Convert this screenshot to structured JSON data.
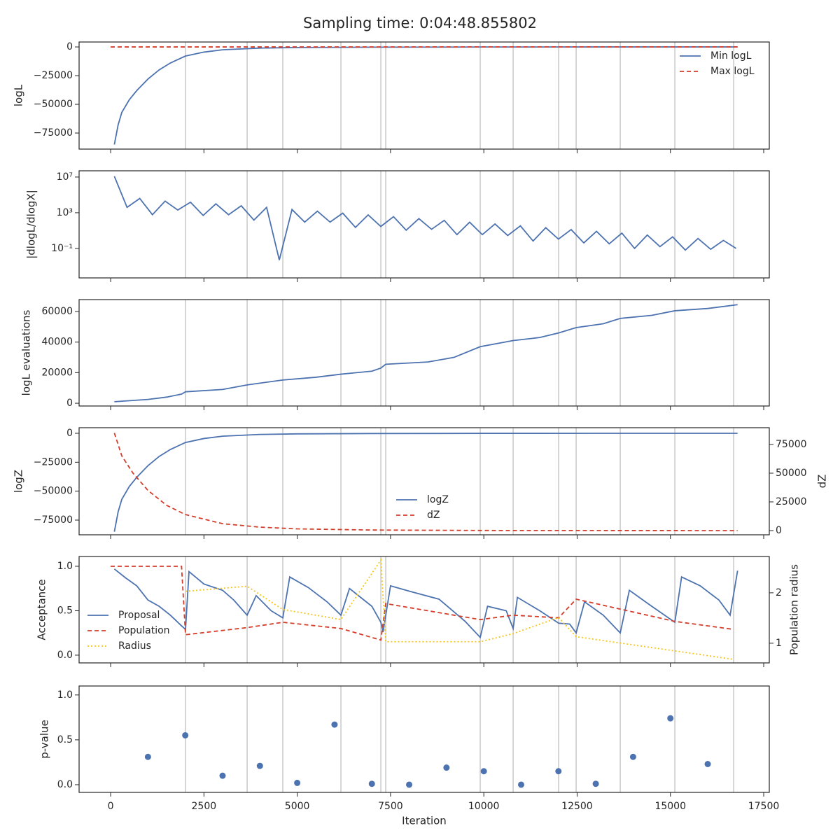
{
  "title": "Sampling time: 0:04:48.855802",
  "x_label": "Iteration",
  "chart_data": [
    {
      "type": "line",
      "y_label": "logL",
      "legend": "upper right",
      "xlim": [
        -845,
        17650
      ],
      "xticks": [
        0,
        2500,
        5000,
        7500,
        10000,
        12500,
        15000,
        17500
      ],
      "ylim": [
        -89000,
        4300
      ],
      "yticks": [
        {
          "value": 0,
          "label": "0"
        },
        {
          "value": -25000,
          "label": "−25000"
        },
        {
          "value": -50000,
          "label": "−50000"
        },
        {
          "value": -75000,
          "label": "−75000"
        }
      ],
      "vlines": [
        2007,
        3658,
        4614,
        6171,
        7241,
        7372,
        9904,
        10786,
        12005,
        12474,
        13656,
        15119,
        16695
      ],
      "series": [
        {
          "name": "Min logL",
          "color": "#4c72b0",
          "style": "solid",
          "x": [
            100,
            200,
            300,
            500,
            700,
            1000,
            1300,
            1600,
            2000,
            2500,
            3000,
            4000,
            5000,
            7000,
            10000,
            13000,
            16800
          ],
          "values": [
            -85000,
            -68000,
            -57000,
            -46000,
            -38000,
            -28000,
            -20000,
            -14000,
            -8000,
            -4500,
            -2500,
            -1000,
            -500,
            -200,
            -50,
            -10,
            0
          ]
        },
        {
          "name": "Max logL",
          "color": "#d43d2a",
          "style": "dashed",
          "x": [
            0,
            16800
          ],
          "values": [
            0,
            0
          ]
        }
      ]
    },
    {
      "type": "line",
      "y_label": "|dlogL/dlogX|",
      "yscale": "log",
      "xlim": [
        -845,
        17650
      ],
      "xticks": [
        0,
        2500,
        5000,
        7500,
        10000,
        12500,
        15000,
        17500
      ],
      "ylim": [
        5e-05,
        50000000
      ],
      "yticks": [
        {
          "value": 10000000,
          "label": "10⁷"
        },
        {
          "value": 1000,
          "label": "10³"
        },
        {
          "value": 0.1,
          "label": "10⁻¹"
        }
      ],
      "vlines": [
        2007,
        3658,
        4614,
        6171,
        7241,
        7372,
        9904,
        10786,
        12005,
        12474,
        13656,
        15119,
        16695
      ],
      "series": [
        {
          "color": "#4c72b0",
          "style": "solid",
          "x": [
            100,
            440,
            780,
            1120,
            1460,
            1800,
            2140,
            2480,
            2820,
            3160,
            3500,
            3840,
            4180,
            4520,
            4860,
            5200,
            5540,
            5880,
            6220,
            6560,
            6900,
            7240,
            7580,
            7920,
            8260,
            8600,
            8940,
            9280,
            9620,
            9960,
            10300,
            10640,
            10980,
            11320,
            11660,
            12000,
            12340,
            12680,
            13020,
            13360,
            13700,
            14040,
            14380,
            14720,
            15060,
            15400,
            15740,
            16080,
            16420,
            16760
          ],
          "values": [
            12000000,
            4000,
            40000,
            600,
            20000,
            2000,
            15000,
            500,
            10000,
            600,
            6000,
            150,
            4000,
            0.005,
            2300,
            90,
            1500,
            90,
            900,
            23,
            570,
            29,
            360,
            11,
            220,
            14,
            140,
            3.5,
            87,
            3.5,
            55,
            2.8,
            34,
            0.68,
            21,
            1.1,
            13,
            0.42,
            8.3,
            0.33,
            5.2,
            0.1,
            3.2,
            0.16,
            2.0,
            0.065,
            1.3,
            0.08,
            0.8,
            0.1
          ]
        }
      ]
    },
    {
      "type": "line",
      "y_label": "logL evaluations",
      "xlim": [
        -845,
        17650
      ],
      "xticks": [
        0,
        2500,
        5000,
        7500,
        10000,
        12500,
        15000,
        17500
      ],
      "ylim": [
        -1800,
        67800
      ],
      "yticks": [
        0,
        20000,
        40000,
        60000
      ],
      "vlines": [
        2007,
        3658,
        4614,
        6171,
        7241,
        7372,
        9904,
        10786,
        12005,
        12474,
        13656,
        15119,
        16695
      ],
      "series": [
        {
          "color": "#4c72b0",
          "style": "solid",
          "x": [
            100,
            1000,
            1500,
            1900,
            2007,
            3000,
            3658,
            4614,
            5500,
            6171,
            7000,
            7241,
            7372,
            8500,
            9200,
            9904,
            10786,
            11500,
            12005,
            12474,
            13200,
            13656,
            14500,
            15119,
            16000,
            16800
          ],
          "values": [
            1000,
            2500,
            4000,
            6000,
            7500,
            9000,
            12000,
            15200,
            17000,
            19000,
            21000,
            23000,
            25500,
            27000,
            30000,
            37000,
            41000,
            43000,
            46000,
            49500,
            52000,
            55500,
            57500,
            60500,
            62000,
            64500
          ]
        }
      ]
    },
    {
      "type": "line",
      "y_label": "logZ",
      "y2_label": "dZ",
      "legend": "lower center",
      "xlim": [
        -845,
        17650
      ],
      "xticks": [
        0,
        2500,
        5000,
        7500,
        10000,
        12500,
        15000,
        17500
      ],
      "ylim": [
        -87700,
        4840
      ],
      "yticks": [
        {
          "value": 0,
          "label": "0"
        },
        {
          "value": -25000,
          "label": "−25000"
        },
        {
          "value": -50000,
          "label": "−50000"
        },
        {
          "value": -75000,
          "label": "−75000"
        }
      ],
      "y2lim": [
        -3660,
        89600
      ],
      "y2ticks": [
        0,
        25000,
        50000,
        75000
      ],
      "vlines": [
        2007,
        3658,
        4614,
        6171,
        7241,
        7372,
        9904,
        10786,
        12005,
        12474,
        13656,
        15119,
        16695
      ],
      "series": [
        {
          "name": "logZ",
          "color": "#4c72b0",
          "style": "solid",
          "x": [
            100,
            200,
            300,
            500,
            700,
            1000,
            1300,
            1600,
            2000,
            2500,
            3000,
            4000,
            5000,
            7000,
            10000,
            13000,
            16800
          ],
          "values": [
            -85000,
            -68000,
            -57000,
            -46000,
            -38000,
            -28000,
            -20000,
            -14000,
            -8000,
            -4500,
            -2500,
            -1000,
            -500,
            -200,
            -50,
            -10,
            0
          ]
        },
        {
          "name": "dZ",
          "color": "#d43d2a",
          "style": "dashed",
          "axis": "y2",
          "x": [
            100,
            300,
            600,
            1000,
            1500,
            2000,
            3000,
            4000,
            5000,
            7000,
            10000,
            16800
          ],
          "values": [
            85000,
            65000,
            50000,
            35000,
            22000,
            14000,
            6000,
            3000,
            1500,
            500,
            100,
            0
          ]
        }
      ]
    },
    {
      "type": "line",
      "y_label": "Acceptance",
      "y2_label": "Population radius",
      "legend": "lower left",
      "xlim": [
        -845,
        17650
      ],
      "xticks": [
        0,
        2500,
        5000,
        7500,
        10000,
        12500,
        15000,
        17500
      ],
      "ylim": [
        -0.087,
        1.11
      ],
      "yticks": [
        {
          "value": 0,
          "label": "0.0"
        },
        {
          "value": 0.5,
          "label": "0.5"
        },
        {
          "value": 1,
          "label": "1.0"
        }
      ],
      "y2lim": [
        0.61,
        2.72
      ],
      "y2ticks": [
        1,
        2
      ],
      "vlines": [
        2007,
        3658,
        4614,
        6171,
        7241,
        7372,
        9904,
        10786,
        12005,
        12474,
        13656,
        15119,
        16695
      ],
      "series": [
        {
          "name": "Proposal",
          "color": "#4c72b0",
          "style": "solid",
          "x": [
            100,
            400,
            700,
            1000,
            1300,
            1600,
            1900,
            2007,
            2100,
            2500,
            3000,
            3300,
            3658,
            3900,
            4300,
            4614,
            4800,
            5300,
            5800,
            6171,
            6400,
            7000,
            7241,
            7300,
            7500,
            8000,
            8800,
            9500,
            9904,
            10100,
            10600,
            10786,
            10900,
            11500,
            12005,
            12300,
            12474,
            12700,
            13200,
            13656,
            13900,
            14500,
            15119,
            15300,
            15800,
            16300,
            16600,
            16800
          ],
          "values": [
            0.97,
            0.87,
            0.78,
            0.62,
            0.55,
            0.45,
            0.33,
            0.29,
            0.94,
            0.8,
            0.73,
            0.62,
            0.45,
            0.67,
            0.5,
            0.42,
            0.88,
            0.76,
            0.6,
            0.45,
            0.75,
            0.55,
            0.37,
            0.26,
            0.78,
            0.72,
            0.63,
            0.38,
            0.2,
            0.55,
            0.5,
            0.3,
            0.65,
            0.5,
            0.36,
            0.35,
            0.25,
            0.6,
            0.45,
            0.25,
            0.73,
            0.55,
            0.37,
            0.88,
            0.78,
            0.62,
            0.45,
            0.95
          ]
        },
        {
          "name": "Population",
          "color": "#d43d2a",
          "style": "dashed",
          "x": [
            0,
            1900,
            2007,
            3658,
            4614,
            6171,
            7241,
            7372,
            9904,
            10786,
            12005,
            12474,
            15119,
            16695
          ],
          "values": [
            1.0,
            1.0,
            0.23,
            0.31,
            0.37,
            0.3,
            0.17,
            0.58,
            0.4,
            0.45,
            0.42,
            0.63,
            0.38,
            0.29
          ]
        },
        {
          "name": "Radius",
          "color": "#f5c518",
          "style": "dotted",
          "axis": "y2",
          "x": [
            2007,
            3658,
            4614,
            6171,
            7241,
            7372,
            9904,
            10786,
            12005,
            12474,
            16695
          ],
          "values": [
            2.03,
            2.13,
            1.67,
            1.47,
            2.65,
            1.03,
            1.03,
            1.19,
            1.51,
            1.13,
            0.68
          ]
        }
      ]
    },
    {
      "type": "scatter",
      "y_label": "p-value",
      "xlim": [
        -845,
        17650
      ],
      "xticks": [
        0,
        2500,
        5000,
        7500,
        10000,
        12500,
        15000,
        17500
      ],
      "ylim": [
        -0.086,
        1.1
      ],
      "yticks": [
        {
          "value": 0,
          "label": "0.0"
        },
        {
          "value": 0.5,
          "label": "0.5"
        },
        {
          "value": 1,
          "label": "1.0"
        }
      ],
      "vlines": [
        2007,
        3658,
        4614,
        6171,
        7241,
        7372,
        9904,
        10786,
        12005,
        12474,
        13656,
        15119,
        16695
      ],
      "series": [
        {
          "color": "#4c72b0",
          "x": [
            1000,
            2000,
            3000,
            4000,
            5000,
            6000,
            7000,
            8000,
            9000,
            10000,
            11000,
            12000,
            13000,
            14000,
            15000,
            16000
          ],
          "values": [
            0.31,
            0.55,
            0.1,
            0.21,
            0.02,
            0.67,
            0.01,
            0.0,
            0.19,
            0.15,
            0.0,
            0.15,
            0.01,
            0.31,
            0.74,
            0.23
          ]
        }
      ]
    }
  ]
}
